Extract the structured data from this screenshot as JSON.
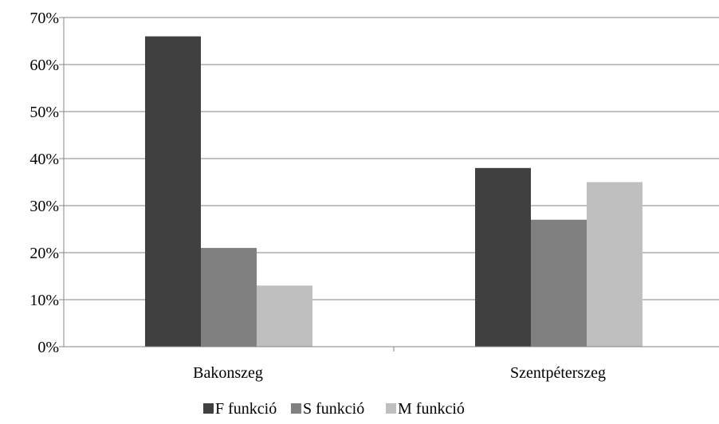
{
  "chart_data": {
    "type": "bar",
    "categories": [
      "Bakonszeg",
      "Szentpéterszeg"
    ],
    "series": [
      {
        "name": "F funkció",
        "values": [
          66,
          38
        ],
        "color": "#404040"
      },
      {
        "name": "S funkció",
        "values": [
          21,
          27
        ],
        "color": "#808080"
      },
      {
        "name": "M funkció",
        "values": [
          13,
          35
        ],
        "color": "#bfbfbf"
      }
    ],
    "y_ticks": [
      "0%",
      "10%",
      "20%",
      "30%",
      "40%",
      "50%",
      "60%",
      "70%"
    ],
    "ylim": [
      0,
      70
    ],
    "y_unit": "%",
    "grid": true,
    "legend_position": "bottom",
    "title": "",
    "xlabel": "",
    "ylabel": ""
  }
}
